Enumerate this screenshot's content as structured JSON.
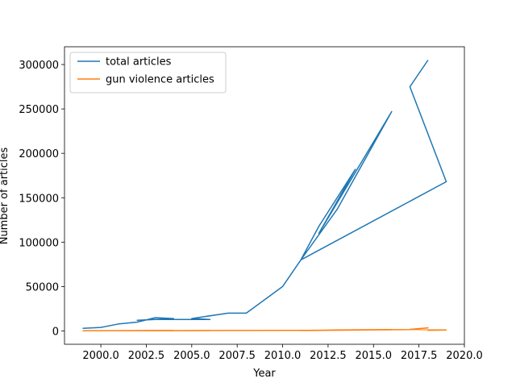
{
  "chart_data": {
    "type": "line",
    "title": "",
    "xlabel": "Year",
    "ylabel": "Number of articles",
    "xlim": [
      1998.0,
      2020.0
    ],
    "ylim": [
      -15000,
      320000
    ],
    "xticks": [
      2000.0,
      2002.5,
      2005.0,
      2007.5,
      2010.0,
      2012.5,
      2015.0,
      2017.5,
      2020.0
    ],
    "xtick_labels": [
      "2000.0",
      "2002.5",
      "2005.0",
      "2007.5",
      "2010.0",
      "2012.5",
      "2015.0",
      "2017.5",
      "2020.0"
    ],
    "yticks": [
      0,
      50000,
      100000,
      150000,
      200000,
      250000,
      300000
    ],
    "ytick_labels": [
      "0",
      "50000",
      "100000",
      "150000",
      "200000",
      "250000",
      "300000"
    ],
    "grid": false,
    "legend_position": "upper-left",
    "series": [
      {
        "name": "total articles",
        "color": "#1f77b4",
        "points": [
          [
            1999,
            3000
          ],
          [
            2000,
            4000
          ],
          [
            2001,
            8000
          ],
          [
            2002,
            10000
          ],
          [
            2003,
            15000
          ],
          [
            2004,
            14000
          ],
          [
            2002,
            12000
          ],
          [
            2003,
            13000
          ],
          [
            2005,
            13000
          ],
          [
            2006,
            13000
          ],
          [
            2005,
            14000
          ],
          [
            2007,
            20000
          ],
          [
            2008,
            20000
          ],
          [
            2010,
            50000
          ],
          [
            2011,
            80000
          ],
          [
            2013,
            137000
          ],
          [
            2016,
            247000
          ],
          [
            2012,
            110000
          ],
          [
            2014,
            182000
          ],
          [
            2012,
            118000
          ],
          [
            2011,
            80000
          ],
          [
            2019,
            168000
          ],
          [
            2017,
            275000
          ],
          [
            2018,
            305000
          ]
        ]
      },
      {
        "name": "gun violence articles",
        "color": "#ff7f0e",
        "points": [
          [
            1999,
            200
          ],
          [
            2000,
            300
          ],
          [
            2001,
            300
          ],
          [
            2002,
            400
          ],
          [
            2003,
            500
          ],
          [
            2004,
            500
          ],
          [
            2002,
            300
          ],
          [
            2004,
            300
          ],
          [
            2005,
            400
          ],
          [
            2006,
            500
          ],
          [
            2005,
            300
          ],
          [
            2007,
            500
          ],
          [
            2008,
            500
          ],
          [
            2010,
            600
          ],
          [
            2011,
            600
          ],
          [
            2012,
            800
          ],
          [
            2013,
            1200
          ],
          [
            2016,
            1500
          ],
          [
            2013,
            1000
          ],
          [
            2011,
            500
          ],
          [
            2017,
            1500
          ],
          [
            2018,
            3500
          ],
          [
            2017,
            1800
          ],
          [
            2019,
            1200
          ],
          [
            2018,
            800
          ],
          [
            2019,
            1000
          ]
        ]
      }
    ]
  }
}
